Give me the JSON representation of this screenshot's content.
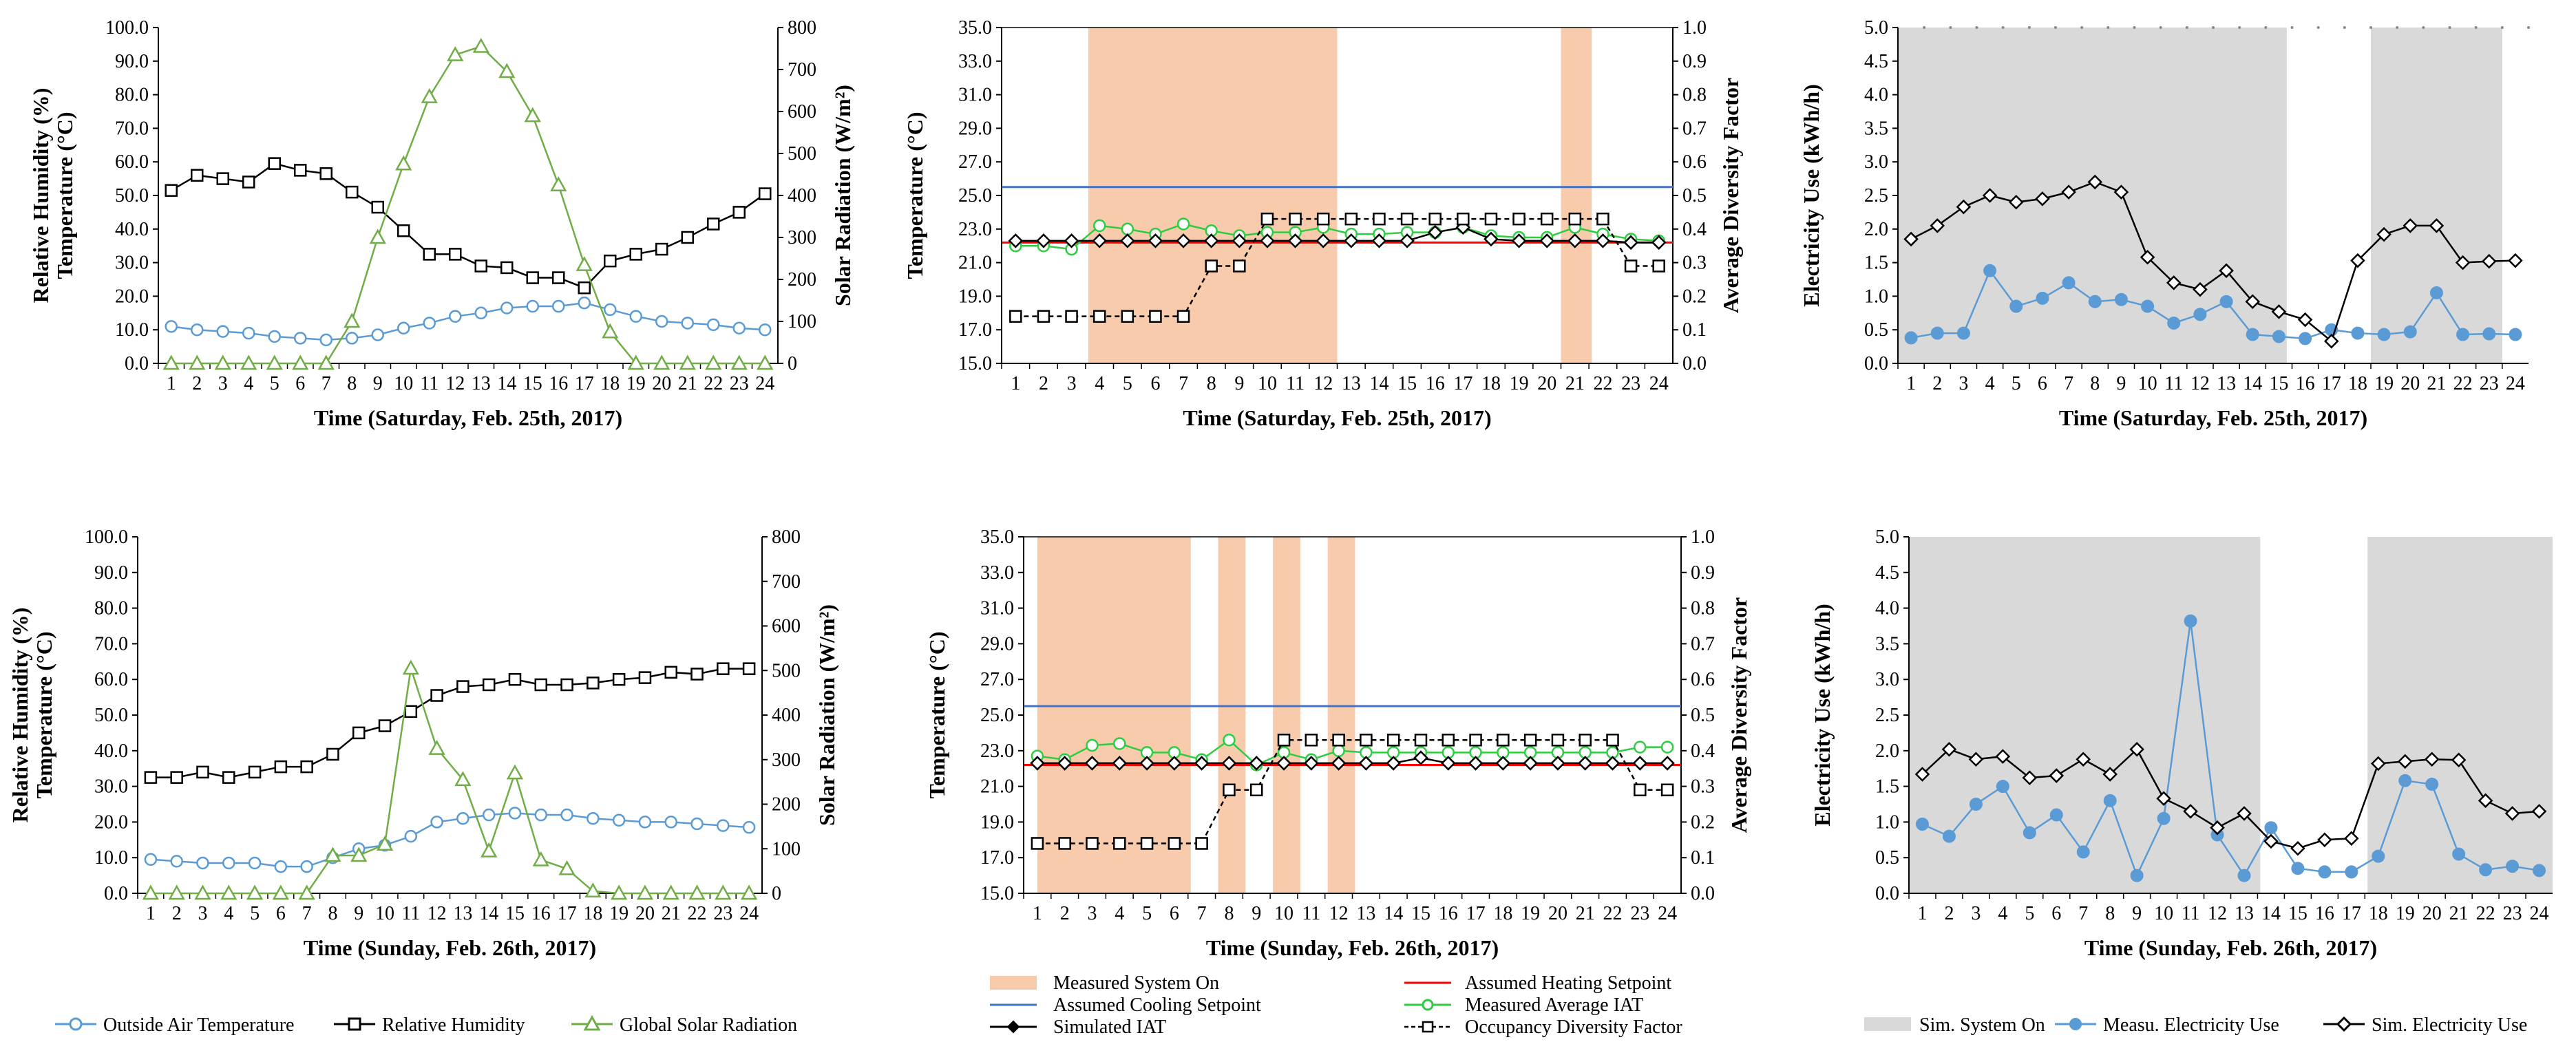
{
  "colors": {
    "blue": "#5b9bd5",
    "black": "#000000",
    "green": "#70ad47",
    "lightgreen": "#2ecc40",
    "red": "#ff0000",
    "setpoint_blue": "#4472c4",
    "band_orange": "#f8cbad",
    "band_gray": "#d9d9d9"
  },
  "chart_data": [
    {
      "id": "weather_sat",
      "type": "line",
      "title": "",
      "xlabel": "Time (Saturday, Feb. 25th, 2017)",
      "ylabel": [
        "Relative Humidity (%)",
        "Temperature (°C)"
      ],
      "y2label": "Solar Radiation (W/m²)",
      "x": [
        1,
        2,
        3,
        4,
        5,
        6,
        7,
        8,
        9,
        10,
        11,
        12,
        13,
        14,
        15,
        16,
        17,
        18,
        19,
        20,
        21,
        22,
        23,
        24
      ],
      "ylim": [
        0,
        100
      ],
      "y2lim": [
        0,
        800
      ],
      "yticks": [
        "0.0",
        "10.0",
        "20.0",
        "30.0",
        "40.0",
        "50.0",
        "60.0",
        "70.0",
        "80.0",
        "90.0",
        "100.0"
      ],
      "y2ticks": [
        "0",
        "100",
        "200",
        "300",
        "400",
        "500",
        "600",
        "700",
        "800"
      ],
      "series": [
        {
          "name": "Outside Air Temperature",
          "axis": "left",
          "color": "blue",
          "marker": "circle",
          "values": [
            11,
            10,
            9.5,
            9,
            8,
            7.5,
            7,
            7.5,
            8.5,
            10.5,
            12,
            14,
            15,
            16.5,
            17,
            17,
            18,
            16,
            14,
            12.5,
            12,
            11.5,
            10.5,
            10
          ]
        },
        {
          "name": "Relative Humidity",
          "axis": "left",
          "color": "black",
          "marker": "square",
          "values": [
            51.5,
            56,
            55,
            54,
            59.5,
            57.5,
            56.5,
            51,
            46.5,
            39.5,
            32.5,
            32.5,
            29,
            28.5,
            25.5,
            25.5,
            22.5,
            30.5,
            32.5,
            34,
            37.5,
            41.5,
            45,
            50.5
          ]
        },
        {
          "name": "Global Solar Radiation",
          "axis": "right",
          "color": "green",
          "marker": "triangle",
          "values": [
            0,
            0,
            0,
            0,
            0,
            0,
            0,
            100,
            300,
            475,
            635,
            735,
            755,
            695,
            590,
            425,
            235,
            75,
            0,
            0,
            0,
            0,
            0,
            0
          ]
        }
      ]
    },
    {
      "id": "iat_sat",
      "type": "line",
      "xlabel": "Time (Saturday, Feb. 25th, 2017)",
      "ylabel": [
        "Temperature (°C)"
      ],
      "y2label": "Average Diversity Factor",
      "x": [
        1,
        2,
        3,
        4,
        5,
        6,
        7,
        8,
        9,
        10,
        11,
        12,
        13,
        14,
        15,
        16,
        17,
        18,
        19,
        20,
        21,
        22,
        23,
        24
      ],
      "ylim": [
        15,
        35
      ],
      "y2lim": [
        0,
        1
      ],
      "yticks": [
        "15.0",
        "17.0",
        "19.0",
        "21.0",
        "23.0",
        "25.0",
        "27.0",
        "29.0",
        "31.0",
        "33.0",
        "35.0"
      ],
      "y2ticks": [
        "0.0",
        "0.1",
        "0.2",
        "0.3",
        "0.4",
        "0.5",
        "0.6",
        "0.7",
        "0.8",
        "0.9",
        "1.0"
      ],
      "bands": [
        [
          3.6,
          12.5
        ],
        [
          20.5,
          21.6
        ]
      ],
      "heating_setpoint": 22.2,
      "cooling_setpoint": 25.5,
      "series": [
        {
          "name": "Measured Average IAT",
          "axis": "left",
          "color": "lightgreen",
          "marker": "circle",
          "values": [
            22,
            22,
            21.8,
            23.2,
            23,
            22.7,
            23.3,
            22.9,
            22.6,
            22.8,
            22.8,
            23.1,
            22.7,
            22.7,
            22.8,
            22.8,
            23.1,
            22.6,
            22.5,
            22.5,
            23.1,
            22.7,
            22.4,
            22.3
          ]
        },
        {
          "name": "Simulated IAT",
          "axis": "left",
          "color": "black",
          "marker": "diamond",
          "values": [
            22.3,
            22.3,
            22.3,
            22.3,
            22.3,
            22.3,
            22.3,
            22.3,
            22.3,
            22.3,
            22.3,
            22.3,
            22.3,
            22.3,
            22.3,
            22.8,
            23.1,
            22.4,
            22.3,
            22.3,
            22.3,
            22.3,
            22.2,
            22.2
          ]
        },
        {
          "name": "Occupancy Diversity Factor",
          "axis": "right",
          "color": "black",
          "marker": "square",
          "dashed": true,
          "values": [
            0.14,
            0.14,
            0.14,
            0.14,
            0.14,
            0.14,
            0.14,
            0.29,
            0.29,
            0.43,
            0.43,
            0.43,
            0.43,
            0.43,
            0.43,
            0.43,
            0.43,
            0.43,
            0.43,
            0.43,
            0.43,
            0.43,
            0.29,
            0.29
          ]
        }
      ]
    },
    {
      "id": "elec_sat",
      "type": "line",
      "xlabel": "Time (Saturday, Feb. 25th, 2017)",
      "ylabel": [
        "Electricity Use (kWh/h)"
      ],
      "x": [
        1,
        2,
        3,
        4,
        5,
        6,
        7,
        8,
        9,
        10,
        11,
        12,
        13,
        14,
        15,
        16,
        17,
        18,
        19,
        20,
        21,
        22,
        23,
        24
      ],
      "ylim": [
        0,
        5
      ],
      "yticks": [
        "0.0",
        "0.5",
        "1.0",
        "1.5",
        "2.0",
        "2.5",
        "3.0",
        "3.5",
        "4.0",
        "4.5",
        "5.0"
      ],
      "bands": [
        [
          0.5,
          15.3
        ],
        [
          18.5,
          23.5
        ]
      ],
      "series": [
        {
          "name": "Measu. Electricity Use",
          "color": "blue",
          "marker": "dot",
          "values": [
            0.38,
            0.45,
            0.45,
            1.38,
            0.85,
            0.97,
            1.2,
            0.92,
            0.95,
            0.85,
            0.6,
            0.73,
            0.92,
            0.43,
            0.4,
            0.37,
            0.5,
            0.45,
            0.43,
            0.47,
            1.05,
            0.43,
            0.44,
            0.43
          ]
        },
        {
          "name": "Sim. Electricity Use",
          "color": "black",
          "marker": "diamond",
          "values": [
            1.85,
            2.05,
            2.33,
            2.5,
            2.4,
            2.45,
            2.55,
            2.7,
            2.55,
            1.58,
            1.2,
            1.1,
            1.38,
            0.92,
            0.77,
            0.65,
            0.33,
            1.53,
            1.92,
            2.05,
            2.05,
            1.5,
            1.52,
            1.53
          ]
        }
      ]
    },
    {
      "id": "weather_sun",
      "type": "line",
      "xlabel": "Time (Sunday, Feb. 26th, 2017)",
      "ylabel": [
        "Relative Humidity (%)",
        "Temperature (°C)"
      ],
      "y2label": "Solar Radiation (W/m²)",
      "x": [
        1,
        2,
        3,
        4,
        5,
        6,
        7,
        8,
        9,
        10,
        11,
        12,
        13,
        14,
        15,
        16,
        17,
        18,
        19,
        20,
        21,
        22,
        23,
        24
      ],
      "ylim": [
        0,
        100
      ],
      "y2lim": [
        0,
        800
      ],
      "yticks": [
        "0.0",
        "10.0",
        "20.0",
        "30.0",
        "40.0",
        "50.0",
        "60.0",
        "70.0",
        "80.0",
        "90.0",
        "100.0"
      ],
      "y2ticks": [
        "0",
        "100",
        "200",
        "300",
        "400",
        "500",
        "600",
        "700",
        "800"
      ],
      "series": [
        {
          "name": "Outside Air Temperature",
          "axis": "left",
          "color": "blue",
          "marker": "circle",
          "values": [
            9.5,
            9,
            8.5,
            8.5,
            8.5,
            7.5,
            7.5,
            10,
            12.5,
            13.5,
            16,
            20,
            21,
            22,
            22.5,
            22,
            22,
            21,
            20.5,
            20,
            20,
            19.5,
            19,
            18.5
          ]
        },
        {
          "name": "Relative Humidity",
          "axis": "left",
          "color": "black",
          "marker": "square",
          "values": [
            32.5,
            32.5,
            34,
            32.5,
            34,
            35.5,
            35.5,
            39,
            45,
            47,
            51,
            55.5,
            58,
            58.5,
            60,
            58.5,
            58.5,
            59,
            60,
            60.5,
            62,
            61.5,
            63,
            63
          ]
        },
        {
          "name": "Global Solar Radiation",
          "axis": "right",
          "color": "green",
          "marker": "triangle",
          "values": [
            0,
            0,
            0,
            0,
            0,
            0,
            0,
            85,
            85,
            110,
            505,
            325,
            255,
            95,
            270,
            75,
            55,
            5,
            0,
            0,
            0,
            0,
            0,
            0
          ]
        }
      ]
    },
    {
      "id": "iat_sun",
      "type": "line",
      "xlabel": "Time (Sunday, Feb. 26th, 2017)",
      "ylabel": [
        "Temperature (°C)"
      ],
      "y2label": "Average Diversity Factor",
      "x": [
        1,
        2,
        3,
        4,
        5,
        6,
        7,
        8,
        9,
        10,
        11,
        12,
        13,
        14,
        15,
        16,
        17,
        18,
        19,
        20,
        21,
        22,
        23,
        24
      ],
      "ylim": [
        15,
        35
      ],
      "y2lim": [
        0,
        1
      ],
      "yticks": [
        "15.0",
        "17.0",
        "19.0",
        "21.0",
        "23.0",
        "25.0",
        "27.0",
        "29.0",
        "31.0",
        "33.0",
        "35.0"
      ],
      "y2ticks": [
        "0.0",
        "0.1",
        "0.2",
        "0.3",
        "0.4",
        "0.5",
        "0.6",
        "0.7",
        "0.8",
        "0.9",
        "1.0"
      ],
      "bands": [
        [
          1,
          6.6
        ],
        [
          7.6,
          8.6
        ],
        [
          9.6,
          10.6
        ],
        [
          11.6,
          12.6
        ]
      ],
      "heating_setpoint": 22.2,
      "cooling_setpoint": 25.5,
      "series": [
        {
          "name": "Measured Average IAT",
          "axis": "left",
          "color": "lightgreen",
          "marker": "circle",
          "values": [
            22.7,
            22.5,
            23.3,
            23.4,
            22.9,
            22.9,
            22.5,
            23.6,
            22.2,
            22.9,
            22.5,
            23,
            22.9,
            22.9,
            22.9,
            22.9,
            22.9,
            22.9,
            22.9,
            22.9,
            22.9,
            22.9,
            23.2,
            23.2
          ]
        },
        {
          "name": "Simulated IAT",
          "axis": "left",
          "color": "black",
          "marker": "diamond",
          "values": [
            22.3,
            22.3,
            22.3,
            22.3,
            22.3,
            22.3,
            22.3,
            22.3,
            22.3,
            22.3,
            22.3,
            22.3,
            22.3,
            22.3,
            22.6,
            22.3,
            22.3,
            22.3,
            22.3,
            22.3,
            22.3,
            22.3,
            22.3,
            22.3
          ]
        },
        {
          "name": "Occupancy Diversity Factor",
          "axis": "right",
          "color": "black",
          "marker": "square",
          "dashed": true,
          "values": [
            0.14,
            0.14,
            0.14,
            0.14,
            0.14,
            0.14,
            0.14,
            0.29,
            0.29,
            0.43,
            0.43,
            0.43,
            0.43,
            0.43,
            0.43,
            0.43,
            0.43,
            0.43,
            0.43,
            0.43,
            0.43,
            0.43,
            0.29,
            0.29
          ]
        }
      ]
    },
    {
      "id": "elec_sun",
      "type": "line",
      "xlabel": "Time (Sunday, Feb. 26th, 2017)",
      "ylabel": [
        "Electricity Use (kWh/h)"
      ],
      "x": [
        1,
        2,
        3,
        4,
        5,
        6,
        7,
        8,
        9,
        10,
        11,
        12,
        13,
        14,
        15,
        16,
        17,
        18,
        19,
        20,
        21,
        22,
        23,
        24
      ],
      "ylim": [
        0,
        5
      ],
      "yticks": [
        "0.0",
        "0.5",
        "1.0",
        "1.5",
        "2.0",
        "2.5",
        "3.0",
        "3.5",
        "4.0",
        "4.5",
        "5.0"
      ],
      "bands": [
        [
          0.5,
          13.6
        ],
        [
          17.6,
          24.5
        ]
      ],
      "series": [
        {
          "name": "Measu. Electricity Use",
          "color": "blue",
          "marker": "dot",
          "values": [
            0.97,
            0.8,
            1.25,
            1.5,
            0.85,
            1.1,
            0.58,
            1.3,
            0.25,
            1.05,
            3.82,
            0.82,
            0.25,
            0.92,
            0.35,
            0.3,
            0.3,
            0.52,
            1.58,
            1.53,
            0.55,
            0.33,
            0.38,
            0.32
          ]
        },
        {
          "name": "Sim. Electricity Use",
          "color": "black",
          "marker": "diamond",
          "values": [
            1.67,
            2.02,
            1.88,
            1.92,
            1.62,
            1.65,
            1.88,
            1.67,
            2.02,
            1.33,
            1.15,
            0.92,
            1.12,
            0.73,
            0.63,
            0.75,
            0.77,
            1.82,
            1.85,
            1.88,
            1.87,
            1.3,
            1.12,
            1.15
          ]
        }
      ]
    }
  ],
  "legends": {
    "weather": [
      "Outside Air Temperature",
      "Relative Humidity",
      "Global Solar Radiation"
    ],
    "iat": [
      "Measured System On",
      "Assumed Heating Setpoint",
      "Assumed Cooling Setpoint",
      "Measured Average IAT",
      "Simulated IAT",
      "Occupancy Diversity Factor"
    ],
    "elec": [
      "Sim. System On",
      "Measu. Electricity Use",
      "Sim. Electricity Use"
    ]
  }
}
